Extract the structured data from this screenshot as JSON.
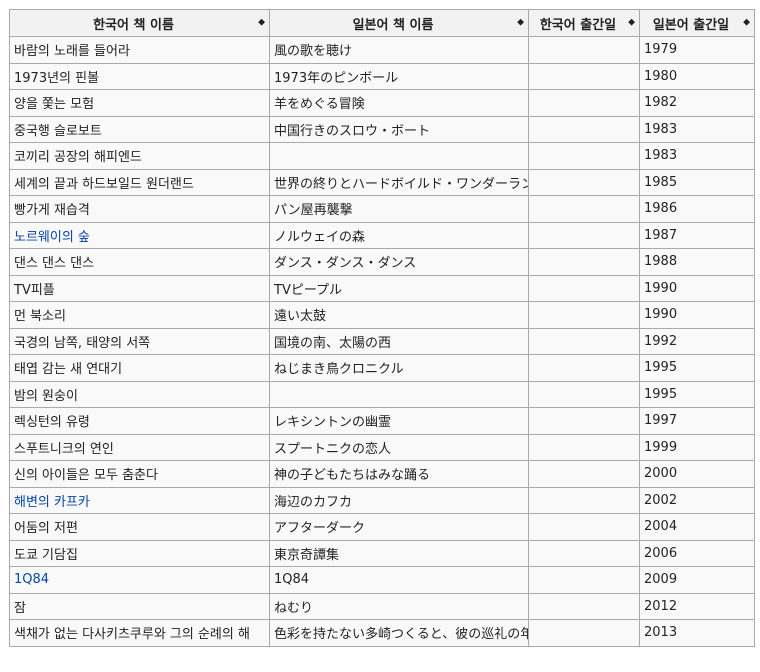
{
  "table": {
    "headers": [
      {
        "label": "한국어 책 이름",
        "sort_icon": "sort-icon"
      },
      {
        "label": "일본어 책 이름",
        "sort_icon": "sort-icon"
      },
      {
        "label": "한국어 출간일",
        "sort_icon": "sort-icon"
      },
      {
        "label": "일본어 출간일",
        "sort_icon": "sort-icon"
      }
    ],
    "sort_glyph": "◆",
    "rows": [
      {
        "ko": "바람의 노래를 들어라",
        "ja": "風の歌を聴け",
        "ko_date": "",
        "ja_date": "1979",
        "link": false
      },
      {
        "ko": "1973년의 핀볼",
        "ja": "1973年のピンボール",
        "ko_date": "",
        "ja_date": "1980",
        "link": false
      },
      {
        "ko": "양을 쫓는 모험",
        "ja": "羊をめぐる冒険",
        "ko_date": "",
        "ja_date": "1982",
        "link": false
      },
      {
        "ko": "중국행 슬로보트",
        "ja": "中国行きのスロウ・ボート",
        "ko_date": "",
        "ja_date": "1983",
        "link": false
      },
      {
        "ko": "코끼리 공장의 해피엔드",
        "ja": "",
        "ko_date": "",
        "ja_date": "1983",
        "link": false
      },
      {
        "ko": "세계의 끝과 하드보일드 원더랜드",
        "ja": "世界の終りとハードボイルド・ワンダーランド",
        "ko_date": "",
        "ja_date": "1985",
        "link": false
      },
      {
        "ko": "빵가게 재습격",
        "ja": "パン屋再襲撃",
        "ko_date": "",
        "ja_date": "1986",
        "link": false
      },
      {
        "ko": "노르웨이의 숲",
        "ja": "ノルウェイの森",
        "ko_date": "",
        "ja_date": "1987",
        "link": true
      },
      {
        "ko": "댄스 댄스 댄스",
        "ja": "ダンス・ダンス・ダンス",
        "ko_date": "",
        "ja_date": "1988",
        "link": false
      },
      {
        "ko": "TV피플",
        "ja": "TVピープル",
        "ko_date": "",
        "ja_date": "1990",
        "link": false
      },
      {
        "ko": "먼 북소리",
        "ja": "遠い太鼓",
        "ko_date": "",
        "ja_date": "1990",
        "link": false
      },
      {
        "ko": "국경의 남쪽, 태양의 서쪽",
        "ja": "国境の南、太陽の西",
        "ko_date": "",
        "ja_date": "1992",
        "link": false
      },
      {
        "ko": "태엽 감는 새 연대기",
        "ja": "ねじまき鳥クロニクル",
        "ko_date": "",
        "ja_date": "1995",
        "link": false
      },
      {
        "ko": "밤의 원숭이",
        "ja": "",
        "ko_date": "",
        "ja_date": "1995",
        "link": false
      },
      {
        "ko": "렉싱턴의 유령",
        "ja": "レキシントンの幽霊",
        "ko_date": "",
        "ja_date": "1997",
        "link": false
      },
      {
        "ko": "스푸트니크의 연인",
        "ja": "スプートニクの恋人",
        "ko_date": "",
        "ja_date": "1999",
        "link": false
      },
      {
        "ko": "신의 아이들은 모두 춤춘다",
        "ja": "神の子どもたちはみな踊る",
        "ko_date": "",
        "ja_date": "2000",
        "link": false
      },
      {
        "ko": "해변의 카프카",
        "ja": "海辺のカフカ",
        "ko_date": "",
        "ja_date": "2002",
        "link": true
      },
      {
        "ko": "어둠의 저편",
        "ja": "アフターダーク",
        "ko_date": "",
        "ja_date": "2004",
        "link": false
      },
      {
        "ko": "도쿄 기담집",
        "ja": "東京奇譚集",
        "ko_date": "",
        "ja_date": "2006",
        "link": false
      },
      {
        "ko": "1Q84",
        "ja": "1Q84",
        "ko_date": "",
        "ja_date": "2009",
        "link": true
      },
      {
        "ko": "잠",
        "ja": "ねむり",
        "ko_date": "",
        "ja_date": "2012",
        "link": false
      },
      {
        "ko": "색채가 없는 다사키츠쿠루와 그의 순례의 해",
        "ja": "色彩を持たない多崎つくると、彼の巡礼の年",
        "ko_date": "",
        "ja_date": "2013",
        "link": false
      }
    ]
  },
  "colors": {
    "link": "#0645ad",
    "border": "#aaaaaa",
    "header_bg": "#f2f2f2",
    "cell_bg": "#f9f9f9"
  }
}
